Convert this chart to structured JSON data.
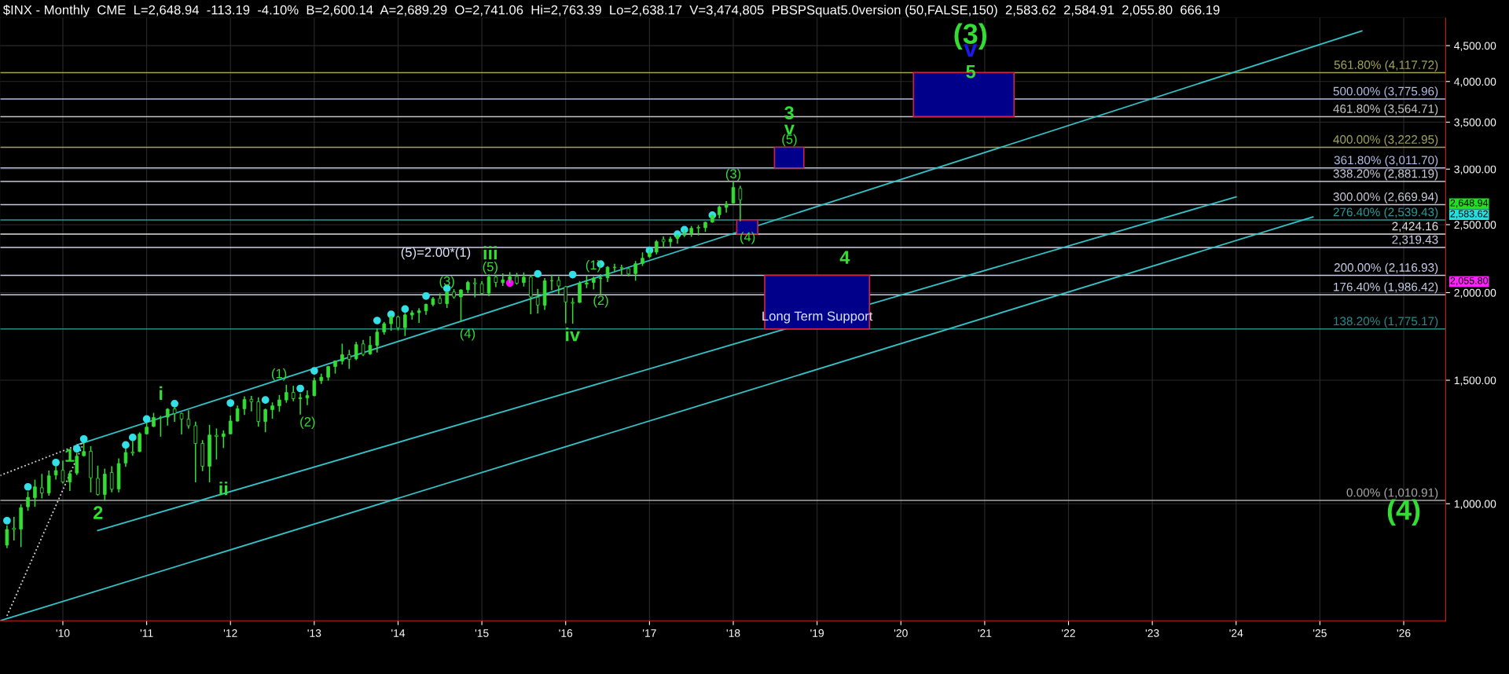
{
  "chart_data": {
    "type": "candlestick",
    "title": "$INX - Monthly  CME  L=2,648.94  -113.19  -4.10%  B=2,600.14  A=2,689.29  O=2,741.06  Hi=2,763.39  Lo=2,638.17  V=3,474,805  PBSPSquat5.0version (50,FALSE,150)  2,583.62  2,584.91  2,055.80  666.19",
    "x": [
      "2009-05",
      "2009-06",
      "2009-07",
      "2009-08",
      "2009-09",
      "2009-10",
      "2009-11",
      "2009-12",
      "2010-01",
      "2010-02",
      "2010-03",
      "2010-04",
      "2010-05",
      "2010-06",
      "2010-07",
      "2010-08",
      "2010-09",
      "2010-10",
      "2010-11",
      "2010-12",
      "2011-01",
      "2011-02",
      "2011-03",
      "2011-04",
      "2011-05",
      "2011-06",
      "2011-07",
      "2011-08",
      "2011-09",
      "2011-10",
      "2011-11",
      "2011-12",
      "2012-01",
      "2012-02",
      "2012-03",
      "2012-04",
      "2012-05",
      "2012-06",
      "2012-07",
      "2012-08",
      "2012-09",
      "2012-10",
      "2012-11",
      "2012-12",
      "2013-01",
      "2013-02",
      "2013-03",
      "2013-04",
      "2013-05",
      "2013-06",
      "2013-07",
      "2013-08",
      "2013-09",
      "2013-10",
      "2013-11",
      "2013-12",
      "2014-01",
      "2014-02",
      "2014-03",
      "2014-04",
      "2014-05",
      "2014-06",
      "2014-07",
      "2014-08",
      "2014-09",
      "2014-10",
      "2014-11",
      "2014-12",
      "2015-01",
      "2015-02",
      "2015-03",
      "2015-04",
      "2015-05",
      "2015-06",
      "2015-07",
      "2015-08",
      "2015-09",
      "2015-10",
      "2015-11",
      "2015-12",
      "2016-01",
      "2016-02",
      "2016-03",
      "2016-04",
      "2016-05",
      "2016-06",
      "2016-07",
      "2016-08",
      "2016-09",
      "2016-10",
      "2016-11",
      "2016-12",
      "2017-01",
      "2017-02",
      "2017-03",
      "2017-04",
      "2017-05",
      "2017-06",
      "2017-07",
      "2017-08",
      "2017-09",
      "2017-10",
      "2017-11",
      "2017-12",
      "2018-01",
      "2018-02"
    ],
    "ohlc": [
      [
        873,
        930,
        866,
        919
      ],
      [
        923,
        956,
        888,
        919
      ],
      [
        920,
        996,
        869,
        987
      ],
      [
        990,
        1039,
        979,
        1021
      ],
      [
        1020,
        1080,
        992,
        1057
      ],
      [
        1054,
        1101,
        1020,
        1036
      ],
      [
        1036,
        1113,
        1029,
        1096
      ],
      [
        1099,
        1130,
        1085,
        1115
      ],
      [
        1116,
        1150,
        1071,
        1074
      ],
      [
        1074,
        1112,
        1045,
        1104
      ],
      [
        1106,
        1180,
        1101,
        1169
      ],
      [
        1171,
        1220,
        1170,
        1187
      ],
      [
        1188,
        1206,
        1040,
        1089
      ],
      [
        1087,
        1131,
        1029,
        1031
      ],
      [
        1031,
        1120,
        1011,
        1102
      ],
      [
        1108,
        1129,
        1040,
        1049
      ],
      [
        1050,
        1158,
        1040,
        1141
      ],
      [
        1143,
        1196,
        1131,
        1183
      ],
      [
        1185,
        1227,
        1173,
        1181
      ],
      [
        1187,
        1262,
        1187,
        1258
      ],
      [
        1258,
        1303,
        1257,
        1286
      ],
      [
        1289,
        1345,
        1289,
        1327
      ],
      [
        1328,
        1332,
        1249,
        1326
      ],
      [
        1329,
        1366,
        1295,
        1364
      ],
      [
        1365,
        1371,
        1311,
        1345
      ],
      [
        1345,
        1346,
        1258,
        1321
      ],
      [
        1320,
        1357,
        1282,
        1292
      ],
      [
        1292,
        1307,
        1075,
        1219
      ],
      [
        1219,
        1230,
        1115,
        1131
      ],
      [
        1131,
        1293,
        1075,
        1253
      ],
      [
        1252,
        1278,
        1159,
        1247
      ],
      [
        1247,
        1270,
        1203,
        1258
      ],
      [
        1258,
        1334,
        1258,
        1312
      ],
      [
        1312,
        1378,
        1312,
        1366
      ],
      [
        1366,
        1420,
        1341,
        1408
      ],
      [
        1409,
        1422,
        1357,
        1398
      ],
      [
        1398,
        1416,
        1291,
        1310
      ],
      [
        1310,
        1364,
        1267,
        1362
      ],
      [
        1362,
        1392,
        1325,
        1379
      ],
      [
        1379,
        1426,
        1355,
        1406
      ],
      [
        1406,
        1475,
        1396,
        1441
      ],
      [
        1441,
        1470,
        1403,
        1412
      ],
      [
        1412,
        1434,
        1343,
        1416
      ],
      [
        1416,
        1448,
        1385,
        1426
      ],
      [
        1426,
        1510,
        1426,
        1498
      ],
      [
        1498,
        1530,
        1485,
        1515
      ],
      [
        1515,
        1570,
        1501,
        1569
      ],
      [
        1569,
        1598,
        1536,
        1598
      ],
      [
        1597,
        1688,
        1582,
        1631
      ],
      [
        1631,
        1654,
        1560,
        1606
      ],
      [
        1610,
        1698,
        1605,
        1686
      ],
      [
        1690,
        1709,
        1627,
        1633
      ],
      [
        1636,
        1730,
        1633,
        1682
      ],
      [
        1682,
        1776,
        1646,
        1757
      ],
      [
        1758,
        1813,
        1746,
        1806
      ],
      [
        1806,
        1849,
        1768,
        1848
      ],
      [
        1846,
        1851,
        1770,
        1783
      ],
      [
        1783,
        1867,
        1738,
        1859
      ],
      [
        1858,
        1883,
        1834,
        1872
      ],
      [
        1873,
        1897,
        1814,
        1884
      ],
      [
        1884,
        1925,
        1863,
        1924
      ],
      [
        1924,
        1968,
        1915,
        1960
      ],
      [
        1962,
        1991,
        1930,
        1931
      ],
      [
        1929,
        2005,
        1905,
        2003
      ],
      [
        2004,
        2019,
        1964,
        1972
      ],
      [
        1972,
        2018,
        1821,
        2018
      ],
      [
        2019,
        2075,
        2001,
        2068
      ],
      [
        2065,
        2093,
        1973,
        2059
      ],
      [
        2059,
        2072,
        1988,
        1995
      ],
      [
        1997,
        2120,
        1981,
        2105
      ],
      [
        2105,
        2117,
        2040,
        2068
      ],
      [
        2067,
        2126,
        2049,
        2086
      ],
      [
        2088,
        2135,
        2068,
        2107
      ],
      [
        2109,
        2130,
        2057,
        2063
      ],
      [
        2067,
        2133,
        2044,
        2104
      ],
      [
        2105,
        2113,
        1867,
        1972
      ],
      [
        1970,
        2021,
        1872,
        1920
      ],
      [
        1919,
        2094,
        1894,
        2079
      ],
      [
        2080,
        2117,
        2020,
        2080
      ],
      [
        2082,
        2104,
        1993,
        2044
      ],
      [
        2039,
        2039,
        1812,
        1940
      ],
      [
        1937,
        1962,
        1810,
        1932
      ],
      [
        1937,
        2073,
        1937,
        2060
      ],
      [
        2057,
        2111,
        2034,
        2065
      ],
      [
        2068,
        2104,
        2025,
        2097
      ],
      [
        2094,
        2121,
        1992,
        2099
      ],
      [
        2100,
        2178,
        2075,
        2174
      ],
      [
        2174,
        2194,
        2147,
        2171
      ],
      [
        2171,
        2188,
        2120,
        2168
      ],
      [
        2164,
        2169,
        2114,
        2126
      ],
      [
        2129,
        2214,
        2084,
        2199
      ],
      [
        2201,
        2278,
        2187,
        2239
      ],
      [
        2251,
        2301,
        2245,
        2279
      ],
      [
        2285,
        2372,
        2272,
        2364
      ],
      [
        2381,
        2401,
        2322,
        2363
      ],
      [
        2363,
        2398,
        2329,
        2384
      ],
      [
        2389,
        2418,
        2353,
        2412
      ],
      [
        2415,
        2454,
        2405,
        2423
      ],
      [
        2431,
        2484,
        2407,
        2470
      ],
      [
        2478,
        2491,
        2418,
        2472
      ],
      [
        2475,
        2519,
        2446,
        2519
      ],
      [
        2522,
        2582,
        2520,
        2575
      ],
      [
        2583,
        2657,
        2558,
        2648
      ],
      [
        2646,
        2695,
        2605,
        2674
      ],
      [
        2684,
        2873,
        2683,
        2824
      ],
      [
        2816,
        2835,
        2533,
        2714
      ]
    ],
    "color": "#33dd33",
    "series": [
      {
        "type": "line",
        "color": "#33c3c8",
        "x": [
          "2010-03",
          "2025-07"
        ],
        "values": [
          1213,
          4721
        ]
      },
      {
        "type": "line",
        "color": "#33c3c8",
        "x": [
          "2010-06",
          "2024-01"
        ],
        "values": [
          916,
          2739
        ]
      },
      {
        "type": "line",
        "color": "#33c3c8",
        "x": [
          "2009-04",
          "2024-12"
        ],
        "values": [
          681,
          2565
        ]
      },
      {
        "type": "line",
        "color": "#d8d8d8",
        "line_style": "dotted",
        "x": [
          "2009-04",
          "2010-04"
        ],
        "values": [
          1097,
          1222
        ]
      },
      {
        "type": "line",
        "color": "#d8d8d8",
        "line_style": "dotted",
        "x": [
          "2009-05",
          "2010-04"
        ],
        "values": [
          692,
          1222
        ]
      },
      {
        "type": "scatter",
        "color": "#33e0e8",
        "marker": "circle",
        "x": [
          "2009-05",
          "2009-08",
          "2009-12",
          "2010-03",
          "2010-04",
          "2010-10",
          "2010-11",
          "2011-01",
          "2011-05",
          "2012-01",
          "2012-06",
          "2012-11",
          "2013-01",
          "2013-10",
          "2013-12",
          "2014-02",
          "2014-05",
          "2014-08",
          "2015-09",
          "2016-02",
          "2016-06",
          "2017-01",
          "2017-05",
          "2017-06",
          "2017-10"
        ],
        "values": [
          946,
          1057,
          1145,
          1198,
          1237,
          1213,
          1243,
          1321,
          1389,
          1392,
          1406,
          1460,
          1547,
          1825,
          1862,
          1895,
          1978,
          2028,
          2127,
          2122,
          2197,
          2298,
          2423,
          2459,
          2579
        ]
      },
      {
        "type": "scatter",
        "color": "#ff00ff",
        "marker": "circle",
        "x": [
          "2015-05"
        ],
        "values": [
          2064
        ]
      },
      {
        "type": "bar",
        "color": "#00008b",
        "x": [
          "2018-03",
          "2018-09",
          "2019-01",
          "2020-10"
        ],
        "base": [
          2424.16,
          3011.7,
          1775.17,
          3564.71
        ],
        "values": [
          115.27,
          211.25,
          341.76,
          553.01
        ]
      }
    ],
    "ref_lines": [
      {
        "axis": "y",
        "value": 4117.72,
        "label": "561.80% (4,117.72)",
        "color": "#a3a35a"
      },
      {
        "axis": "y",
        "value": 3775.96,
        "label": "500.00% (3,775.96)",
        "color": "#b4bee6"
      },
      {
        "axis": "y",
        "value": 3564.71,
        "label": "461.80% (3,564.71)",
        "color": "#c4c4c4"
      },
      {
        "axis": "y",
        "value": 3222.95,
        "label": "400.00% (3,222.95)",
        "color": "#a3a35a"
      },
      {
        "axis": "y",
        "value": 3011.7,
        "label": "361.80% (3,011.70)",
        "color": "#b4bee6"
      },
      {
        "axis": "y",
        "value": 2881.19,
        "label": "338.20% (2,881.19)",
        "color": "#c8c8d8"
      },
      {
        "axis": "y",
        "value": 2669.94,
        "label": "300.00% (2,669.94)",
        "color": "#c8c8d8"
      },
      {
        "axis": "y",
        "value": 2539.43,
        "label": "276.40% (2,539.43)",
        "color": "#2a9a9a"
      },
      {
        "axis": "y",
        "value": 2424.16,
        "label": "2,424.16",
        "color": "#e0e0e0"
      },
      {
        "axis": "y",
        "value": 2319.43,
        "label": "2,319.43",
        "color": "#d0d0e8"
      },
      {
        "axis": "y",
        "value": 2116.93,
        "label": "200.00% (2,116.93)",
        "color": "#c8cce8"
      },
      {
        "axis": "y",
        "value": 1986.42,
        "label": "176.40% (1,986.42)",
        "color": "#c8cce8"
      },
      {
        "axis": "y",
        "value": 1775.17,
        "label": "138.20% (1,775.17)",
        "color": "#2a8a8a"
      },
      {
        "axis": "y",
        "value": 1010.91,
        "label": "0.00% (1,010.91)",
        "color": "#a8a8a8"
      }
    ],
    "annotations": [
      "1",
      "2",
      "i",
      {
        "text": "ii",
        "x": "2011-12",
        "y": 1045
      },
      "iii",
      "iv",
      {
        "text": "3",
        "x": "2018-09",
        "y": 3590
      },
      "v",
      "4",
      {
        "text": "5",
        "x": "2020-11",
        "y": 4111
      },
      "v",
      "(3)",
      "(4)",
      "(1)",
      "(2)",
      {
        "text": "(3)",
        "x": "2014-08",
        "y": 2070
      },
      "(4)",
      "(5)",
      "(1)",
      "(2)",
      "(3)",
      "(4)",
      "(5)",
      "(5)=2.00*(1)",
      {
        "text": "Long Term Support",
        "x": "2019-01",
        "y": 1845
      },
      {
        "text": "2,648.94",
        "x": "2026-07",
        "y": 2648.94
      },
      "2,583.62",
      "2,055.80"
    ],
    "log": true,
    "ylim": [
      681,
      4935
    ],
    "yticks": [
      {
        "value": 1000,
        "label": "1,000.00"
      },
      {
        "value": 1500,
        "label": "1,500.00"
      },
      {
        "value": 2000,
        "label": "2,000.00"
      },
      {
        "value": 2500,
        "label": "2,500.00"
      },
      {
        "value": 3000,
        "label": "3,000.00"
      },
      {
        "value": 3500,
        "label": "3,500.00"
      },
      {
        "value": 4000,
        "label": "4,000.00"
      },
      {
        "value": 4500,
        "label": "4,500.00"
      }
    ],
    "xlim": [
      "2009-04",
      "2026-07"
    ],
    "xticks": [
      {
        "value": "2010-01",
        "label": "'10"
      },
      {
        "value": "2011-01",
        "label": "'11"
      },
      {
        "value": "2012-01",
        "label": "'12"
      },
      {
        "value": "2013-01",
        "label": "'13"
      },
      {
        "value": "2014-01",
        "label": "'14"
      },
      {
        "value": "2015-01",
        "label": "'15"
      },
      {
        "value": "2016-01",
        "label": "'16"
      },
      {
        "value": "2017-01",
        "label": "'17"
      },
      {
        "value": "2018-01",
        "label": "'18"
      },
      {
        "value": "2019-01",
        "label": "'19"
      },
      {
        "value": "2020-01",
        "label": "'20"
      },
      {
        "value": "2021-01",
        "label": "'21"
      },
      {
        "value": "2022-01",
        "label": "'22"
      },
      {
        "value": "2023-01",
        "label": "'23"
      },
      {
        "value": "2024-01",
        "label": "'24"
      },
      {
        "value": "2025-01",
        "label": "'25"
      },
      {
        "value": "2026-01",
        "label": "'26"
      }
    ],
    "grid": true,
    "legend": false
  }
}
